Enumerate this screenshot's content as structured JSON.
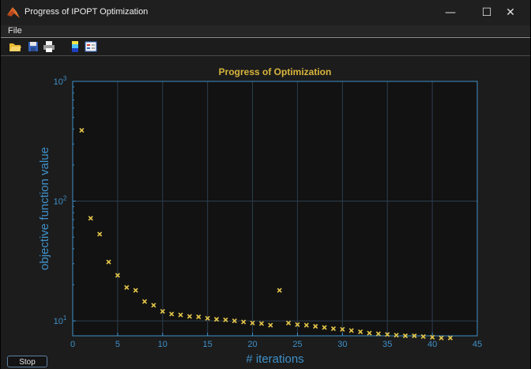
{
  "window": {
    "title": "Progress of IPOPT Optimization",
    "minimize_glyph": "—",
    "maximize_glyph": "☐",
    "close_glyph": "✕"
  },
  "menu": {
    "file_label": "File"
  },
  "toolbar": {
    "icons": [
      "open-folder-icon",
      "save-icon",
      "print-icon",
      "colorbar-icon",
      "legend-icon"
    ]
  },
  "controls": {
    "stop_label": "Stop"
  },
  "colors": {
    "background": "#1c1c1c",
    "axes_background": "#121212",
    "axis_color": "#3f90c9",
    "title_color": "#d9b53d",
    "marker_color": "#e6c84a",
    "grid_color": "#2c3e4f"
  },
  "chart_data": {
    "type": "scatter",
    "title": "Progress of Optimization",
    "xlabel": "# iterations",
    "ylabel": "objective function value",
    "xlim": [
      0,
      45
    ],
    "ylim": [
      7.5,
      1000
    ],
    "yscale": "log",
    "grid": true,
    "marker": "x",
    "x_ticks": [
      0,
      5,
      10,
      15,
      20,
      25,
      30,
      35,
      40,
      45
    ],
    "y_ticks": [
      {
        "value": 10,
        "base": "10",
        "exp": "1"
      },
      {
        "value": 100,
        "base": "10",
        "exp": "2"
      },
      {
        "value": 1000,
        "base": "10",
        "exp": "3"
      }
    ],
    "x": [
      1,
      2,
      3,
      4,
      5,
      6,
      7,
      8,
      9,
      10,
      11,
      12,
      13,
      14,
      15,
      16,
      17,
      18,
      19,
      20,
      21,
      22,
      23,
      24,
      25,
      26,
      27,
      28,
      29,
      30,
      31,
      32,
      33,
      34,
      35,
      36,
      37,
      38,
      39,
      40,
      41,
      42
    ],
    "y": [
      390,
      72,
      53,
      31,
      24,
      19,
      18,
      14.5,
      13.5,
      12,
      11.4,
      11.2,
      10.9,
      10.8,
      10.5,
      10.3,
      10.2,
      10,
      9.8,
      9.6,
      9.5,
      9.2,
      18,
      9.6,
      9.3,
      9.2,
      9,
      8.8,
      8.6,
      8.5,
      8.3,
      8.1,
      7.9,
      7.8,
      7.7,
      7.6,
      7.5,
      7.5,
      7.4,
      7.3,
      7.2,
      7.2
    ]
  }
}
